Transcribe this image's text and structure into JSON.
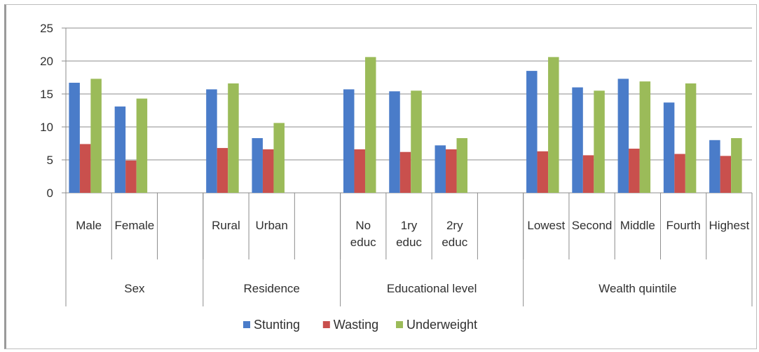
{
  "chart_data": {
    "type": "bar",
    "title": "",
    "xlabel": "",
    "ylabel": "",
    "ylim": [
      0,
      25
    ],
    "yticks": [
      0,
      5,
      10,
      15,
      20,
      25
    ],
    "grid": true,
    "legend_position": "bottom",
    "groups": [
      {
        "label": "Sex",
        "categories": [
          "Male",
          "Female",
          ""
        ]
      },
      {
        "label": "Residence",
        "categories": [
          "Rural",
          "Urban",
          ""
        ]
      },
      {
        "label": "Educational level",
        "categories": [
          "No educ",
          "1ry educ",
          "2ry educ",
          ""
        ]
      },
      {
        "label": "Wealth quintile",
        "categories": [
          "Lowest",
          "Second",
          "Middle",
          "Fourth",
          "Highest"
        ]
      }
    ],
    "categories": [
      "Male",
      "Female",
      "",
      "Rural",
      "Urban",
      "",
      "No educ",
      "1ry educ",
      "2ry educ",
      "",
      "Lowest",
      "Second",
      "Middle",
      "Fourth",
      "Highest"
    ],
    "series": [
      {
        "name": "Stunting",
        "color": "#4a7cc9",
        "values": [
          16.7,
          13.1,
          null,
          15.7,
          8.3,
          null,
          15.7,
          15.4,
          7.2,
          null,
          18.5,
          16.0,
          17.3,
          13.7,
          8.0
        ]
      },
      {
        "name": "Wasting",
        "color": "#c9504d",
        "values": [
          7.4,
          4.9,
          null,
          6.8,
          6.6,
          null,
          6.6,
          6.2,
          6.6,
          null,
          6.3,
          5.7,
          6.7,
          5.9,
          5.6
        ]
      },
      {
        "name": "Underweight",
        "color": "#9bbb59",
        "values": [
          17.3,
          14.3,
          null,
          16.6,
          10.6,
          null,
          20.6,
          15.5,
          8.3,
          null,
          20.6,
          15.5,
          16.9,
          16.6,
          8.3
        ]
      }
    ]
  }
}
